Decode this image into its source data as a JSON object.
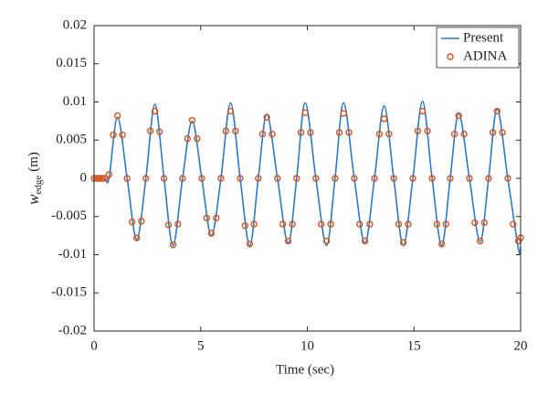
{
  "chart_data": {
    "type": "line",
    "xlabel": "Time (sec)",
    "ylabel": {
      "symbol": "w",
      "subscript": "edge",
      "unit": "(m)"
    },
    "xlim": [
      0,
      20
    ],
    "xticks": [
      0,
      5,
      10,
      15,
      20
    ],
    "ylim": [
      -0.02,
      0.02
    ],
    "yticks": [
      -0.02,
      -0.015,
      -0.01,
      -0.005,
      0,
      0.005,
      0.01,
      0.015,
      0.02
    ],
    "legend": "upper right",
    "series": [
      {
        "name": "Present",
        "color": "#2f7ac4",
        "type": "line",
        "x": [
          0,
          0.5,
          0.7,
          1.1,
          1.55,
          2.0,
          2.43,
          2.85,
          3.28,
          3.7,
          4.15,
          4.6,
          5.05,
          5.5,
          5.95,
          6.4,
          6.85,
          7.3,
          7.7,
          8.1,
          8.6,
          9.1,
          9.5,
          9.9,
          10.4,
          10.9,
          11.3,
          11.7,
          12.2,
          12.7,
          13.15,
          13.6,
          14.05,
          14.5,
          14.95,
          15.4,
          15.85,
          16.3,
          16.7,
          17.1,
          17.6,
          18.1,
          18.5,
          18.9,
          19.4,
          19.9,
          20
        ],
        "values": [
          0,
          0,
          0,
          0.008,
          0,
          -0.008,
          0,
          0.0097,
          0,
          -0.0088,
          0,
          0.0075,
          0,
          -0.0075,
          0,
          0.0099,
          0,
          -0.0088,
          0,
          0.0084,
          0,
          -0.0085,
          0,
          0.0099,
          0,
          -0.0088,
          0,
          0.0099,
          0,
          -0.0085,
          0,
          0.0095,
          0,
          -0.0088,
          0,
          0.0101,
          0,
          -0.0088,
          0,
          0.0085,
          0,
          -0.0083,
          0,
          0.0091,
          0,
          -0.0093,
          -0.009
        ]
      },
      {
        "name": "ADINA",
        "color": "#d95319",
        "type": "scatter",
        "x": [
          0,
          0.1,
          0.2,
          0.3,
          0.4,
          0.5,
          0.7,
          0.9,
          1.1,
          1.33,
          1.55,
          1.78,
          2.0,
          2.22,
          2.43,
          2.64,
          2.85,
          3.07,
          3.28,
          3.49,
          3.7,
          3.93,
          4.15,
          4.38,
          4.6,
          4.83,
          5.05,
          5.28,
          5.5,
          5.73,
          5.95,
          6.18,
          6.4,
          6.63,
          6.85,
          7.08,
          7.3,
          7.5,
          7.7,
          7.9,
          8.1,
          8.35,
          8.6,
          8.85,
          9.1,
          9.3,
          9.5,
          9.7,
          9.9,
          10.15,
          10.4,
          10.65,
          10.9,
          11.1,
          11.3,
          11.5,
          11.7,
          11.95,
          12.2,
          12.45,
          12.7,
          12.93,
          13.15,
          13.38,
          13.6,
          13.83,
          14.05,
          14.28,
          14.5,
          14.73,
          14.95,
          15.18,
          15.4,
          15.63,
          15.85,
          16.08,
          16.3,
          16.5,
          16.7,
          16.9,
          17.1,
          17.35,
          17.6,
          17.85,
          18.1,
          18.3,
          18.5,
          18.7,
          18.9,
          19.15,
          19.4,
          19.65,
          19.9,
          20
        ],
        "values": [
          0,
          0,
          0,
          0,
          0,
          0,
          0.0005,
          0.0057,
          0.0082,
          0.0057,
          0,
          -0.0057,
          -0.0078,
          -0.0056,
          0,
          0.0062,
          0.0088,
          0.0061,
          0,
          -0.0061,
          -0.0087,
          -0.006,
          0,
          0.0052,
          0.0076,
          0.0052,
          0,
          -0.0052,
          -0.0072,
          -0.0052,
          0,
          0.0062,
          0.0088,
          0.0062,
          0,
          -0.0062,
          -0.0086,
          -0.006,
          0,
          0.0058,
          0.008,
          0.0058,
          0,
          -0.006,
          -0.0082,
          -0.006,
          0,
          0.006,
          0.0086,
          0.006,
          0,
          -0.006,
          -0.0082,
          -0.006,
          0,
          0.006,
          0.0085,
          0.006,
          0,
          -0.006,
          -0.0082,
          -0.006,
          0,
          0.0058,
          0.0078,
          0.0058,
          0,
          -0.006,
          -0.0084,
          -0.006,
          0,
          0.0062,
          0.0088,
          0.0062,
          0,
          -0.006,
          -0.0086,
          -0.006,
          0,
          0.0058,
          0.0082,
          0.0058,
          0,
          -0.0058,
          -0.0082,
          -0.0058,
          0,
          0.006,
          0.0088,
          0.006,
          0,
          -0.006,
          -0.0082,
          -0.0078
        ]
      }
    ]
  }
}
